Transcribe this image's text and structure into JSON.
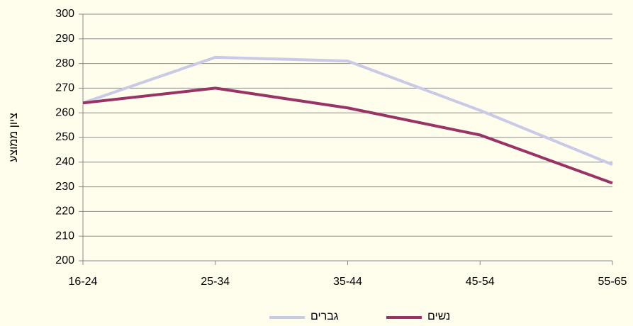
{
  "chart_data": {
    "type": "line",
    "y_label": "ציון ממוצע",
    "categories": [
      "16-24",
      "25-34",
      "35-44",
      "45-54",
      "55-65"
    ],
    "series": [
      {
        "name": "גברים",
        "color": "#c9c9e8",
        "values": [
          264,
          282.5,
          281,
          261,
          239
        ]
      },
      {
        "name": "נשים",
        "color": "#993366",
        "values": [
          264,
          270,
          262,
          251,
          231.5
        ]
      }
    ],
    "ylim": [
      200,
      300
    ],
    "yticks": [
      200,
      210,
      220,
      230,
      240,
      250,
      260,
      270,
      280,
      290,
      300
    ],
    "grid": true,
    "legend": "bottom"
  }
}
